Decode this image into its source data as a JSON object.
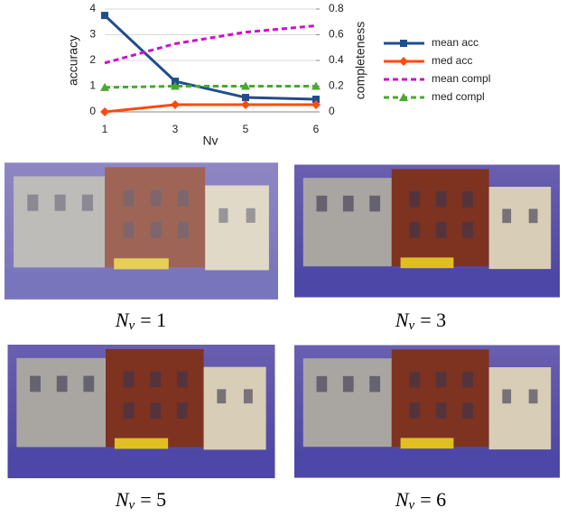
{
  "chart_data": {
    "type": "line",
    "categories": [
      "1",
      "3",
      "5",
      "6"
    ],
    "x_label": "Nv",
    "y_label": "accuracy",
    "y2_label": "completeness",
    "ylim": [
      0,
      4
    ],
    "yticks": [
      0,
      1,
      2,
      3,
      4
    ],
    "y2lim": [
      0,
      0.8
    ],
    "y2ticks": [
      0,
      0.2,
      0.4,
      0.6,
      0.8
    ],
    "grid": true,
    "series": [
      {
        "name": "mean acc",
        "color": "#1f4e8c",
        "marker": "square",
        "dash": "solid",
        "values": [
          3.75,
          1.19,
          0.56,
          0.49
        ]
      },
      {
        "name": "med acc",
        "color": "#ff4a10",
        "marker": "diamond",
        "dash": "solid",
        "values": [
          0,
          0.28,
          0.28,
          0.28
        ]
      },
      {
        "name": "mean compl",
        "color": "#cc11cc",
        "marker": "none",
        "dash": "dashed",
        "axis": "y2",
        "values": [
          0.38,
          0.53,
          0.62,
          0.67
        ]
      },
      {
        "name": "med compl",
        "color": "#4aa832",
        "marker": "triangle",
        "dash": "dashed",
        "axis": "y2",
        "values": [
          0.19,
          0.2,
          0.2,
          0.2
        ]
      }
    ]
  },
  "captions": [
    {
      "var": "N",
      "sub": "v",
      "eq": "= 1"
    },
    {
      "var": "N",
      "sub": "v",
      "eq": "= 3"
    },
    {
      "var": "N",
      "sub": "v",
      "eq": "= 5"
    },
    {
      "var": "N",
      "sub": "v",
      "eq": "= 6"
    }
  ]
}
